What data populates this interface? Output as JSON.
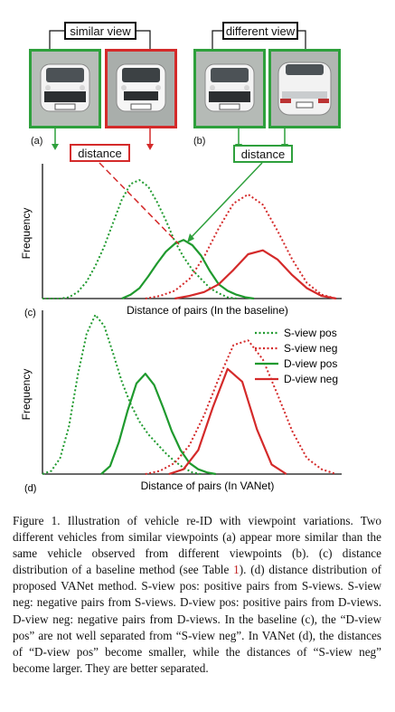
{
  "top_left": {
    "title": "similar view",
    "panel_label": "(a)",
    "distance_label": "distance"
  },
  "top_right": {
    "title": "different view",
    "panel_label": "(b)",
    "distance_label": "distance"
  },
  "chart_data": [
    {
      "type": "line",
      "panel_label": "(c)",
      "xlabel": "Distance of pairs (In the baseline)",
      "ylabel": "Frequency",
      "x_range": [
        0,
        10
      ],
      "grid": false,
      "series": [
        {
          "name": "S-view pos",
          "style": "dotted",
          "color": "#1f9a2e",
          "x": [
            0,
            0.3,
            0.6,
            0.9,
            1.2,
            1.5,
            1.8,
            2.1,
            2.4,
            2.7,
            3.0,
            3.3,
            3.6,
            3.9,
            4.2,
            4.5,
            4.8,
            5.1,
            5.4,
            5.7,
            6.0,
            6.3,
            6.6
          ],
          "y": [
            0.0,
            0.0,
            0.0,
            0.01,
            0.05,
            0.13,
            0.25,
            0.4,
            0.58,
            0.76,
            0.88,
            0.91,
            0.86,
            0.74,
            0.6,
            0.44,
            0.32,
            0.22,
            0.15,
            0.08,
            0.04,
            0.01,
            0.0
          ]
        },
        {
          "name": "S-view neg",
          "style": "dotted",
          "color": "#d42a2a",
          "x": [
            3.5,
            4.0,
            4.5,
            5.0,
            5.5,
            6.0,
            6.5,
            7.0,
            7.5,
            8.0,
            8.5,
            9.0,
            9.5,
            10.0
          ],
          "y": [
            0.0,
            0.02,
            0.06,
            0.15,
            0.32,
            0.54,
            0.73,
            0.8,
            0.72,
            0.52,
            0.3,
            0.12,
            0.03,
            0.0
          ]
        },
        {
          "name": "D-view pos",
          "style": "solid",
          "color": "#1f9a2e",
          "x": [
            2.7,
            3.0,
            3.3,
            3.6,
            3.9,
            4.2,
            4.5,
            4.8,
            5.1,
            5.4,
            5.7,
            6.0,
            6.3,
            6.6,
            6.9,
            7.2
          ],
          "y": [
            0.0,
            0.03,
            0.08,
            0.17,
            0.27,
            0.36,
            0.42,
            0.45,
            0.41,
            0.33,
            0.21,
            0.11,
            0.06,
            0.03,
            0.01,
            0.0
          ]
        },
        {
          "name": "D-view neg",
          "style": "solid",
          "color": "#d42a2a",
          "x": [
            4.5,
            5.0,
            5.5,
            6.0,
            6.5,
            7.0,
            7.5,
            8.0,
            8.5,
            9.0,
            9.5,
            10.0
          ],
          "y": [
            0.0,
            0.02,
            0.05,
            0.11,
            0.22,
            0.34,
            0.37,
            0.3,
            0.18,
            0.08,
            0.02,
            0.0
          ]
        }
      ]
    },
    {
      "type": "line",
      "panel_label": "(d)",
      "xlabel": "Distance of pairs (In VANet)",
      "ylabel": "Frequency",
      "x_range": [
        0,
        10
      ],
      "grid": false,
      "legend_position": "top-right",
      "series": [
        {
          "name": "S-view pos",
          "style": "dotted",
          "color": "#1f9a2e",
          "x": [
            0,
            0.3,
            0.6,
            0.9,
            1.2,
            1.5,
            1.8,
            2.1,
            2.4,
            2.7,
            3.0,
            3.3,
            3.6,
            3.9,
            4.2,
            4.5,
            4.8,
            5.1,
            5.4
          ],
          "y": [
            0.0,
            0.02,
            0.1,
            0.3,
            0.62,
            0.88,
            1.0,
            0.93,
            0.76,
            0.58,
            0.44,
            0.33,
            0.25,
            0.19,
            0.13,
            0.08,
            0.04,
            0.01,
            0.0
          ]
        },
        {
          "name": "S-view neg",
          "style": "dotted",
          "color": "#d42a2a",
          "x": [
            3.5,
            4.0,
            4.5,
            5.0,
            5.5,
            6.0,
            6.5,
            7.0,
            7.5,
            8.0,
            8.5,
            9.0,
            9.5,
            10.0
          ],
          "y": [
            0.0,
            0.02,
            0.07,
            0.18,
            0.37,
            0.6,
            0.81,
            0.84,
            0.72,
            0.5,
            0.27,
            0.1,
            0.03,
            0.0
          ]
        },
        {
          "name": "D-view pos",
          "style": "solid",
          "color": "#1f9a2e",
          "x": [
            2.0,
            2.3,
            2.6,
            2.9,
            3.2,
            3.5,
            3.8,
            4.1,
            4.4,
            4.7,
            5.0,
            5.3,
            5.6,
            5.9
          ],
          "y": [
            0.0,
            0.05,
            0.2,
            0.4,
            0.57,
            0.63,
            0.56,
            0.42,
            0.27,
            0.15,
            0.07,
            0.03,
            0.01,
            0.0
          ]
        },
        {
          "name": "D-view neg",
          "style": "solid",
          "color": "#d42a2a",
          "x": [
            4.3,
            4.8,
            5.3,
            5.8,
            6.3,
            6.8,
            7.3,
            7.8,
            8.3
          ],
          "y": [
            0.0,
            0.03,
            0.15,
            0.42,
            0.66,
            0.58,
            0.28,
            0.06,
            0.0
          ]
        }
      ]
    }
  ],
  "caption": {
    "prefix": "Figure 1. Illustration of vehicle re-ID with viewpoint variations. Two different vehicles from similar viewpoints (a) appear more similar than the same vehicle observed from different viewpoints (b). (c) distance distribution of a baseline method (see Table ",
    "ref": "1",
    "suffix": "). (d) distance distribution of proposed VANet method. S-view pos: positive pairs from S-views. S-view neg: negative pairs from S-views. D-view pos: positive pairs from D-views. D-view neg: negative pairs from D-views. In the baseline (c), the “D-view pos” are not well separated from “S-view neg”. In VANet (d), the distances of “D-view pos” become smaller, while the distances of “S-view neg” become larger. They are better separated."
  }
}
